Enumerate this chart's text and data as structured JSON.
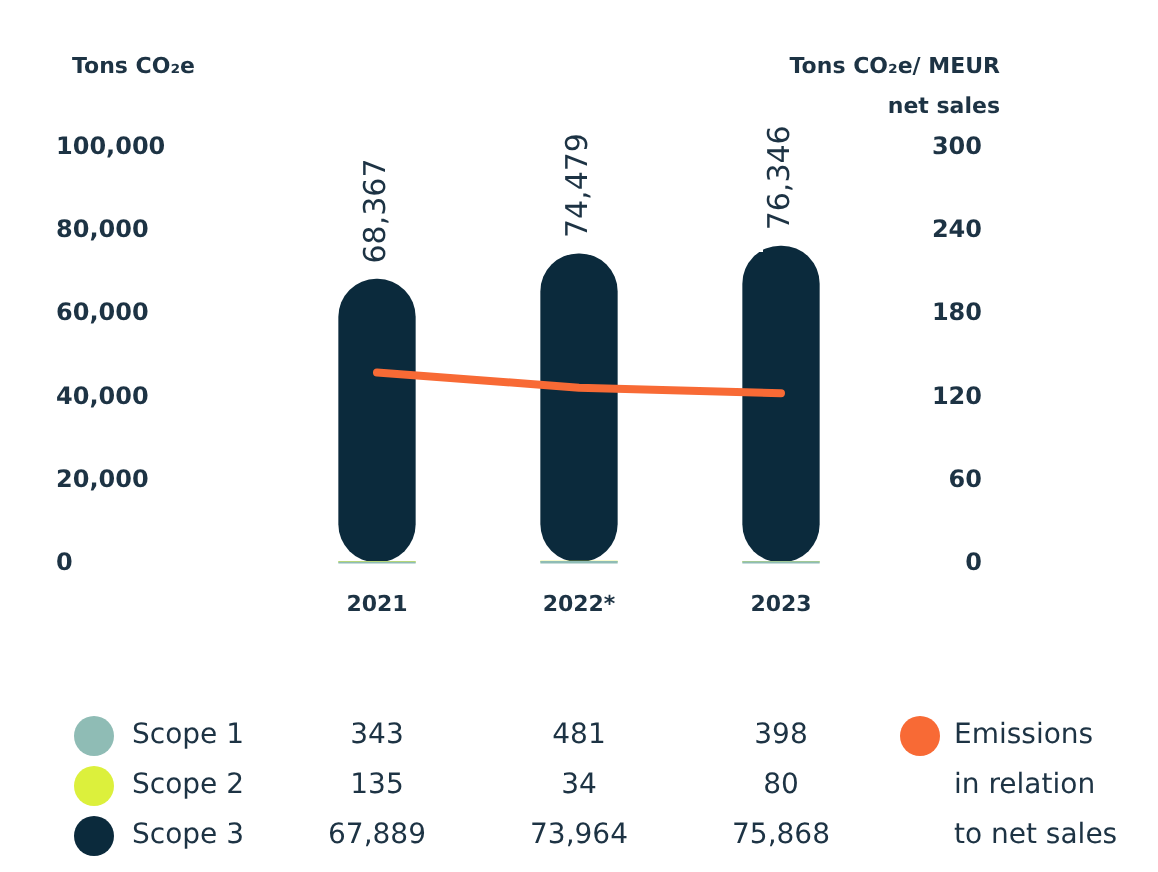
{
  "chart_data": {
    "type": "bar",
    "stacked": true,
    "ylabel": "Tons CO₂e",
    "y2label": "Tons CO₂e/ MEUR net sales",
    "categories": [
      "2021",
      "2022*",
      "2023"
    ],
    "series": [
      {
        "name": "Scope 1",
        "color": "#8fbcb5",
        "values": [
          343,
          481,
          398
        ],
        "value_labels": [
          "343",
          "481",
          "398"
        ]
      },
      {
        "name": "Scope 2",
        "color": "#dcf03c",
        "values": [
          135,
          34,
          80
        ],
        "value_labels": [
          "135",
          "34",
          "80"
        ]
      },
      {
        "name": "Scope 3",
        "color": "#0b2a3c",
        "values": [
          67889,
          73964,
          75868
        ],
        "value_labels": [
          "67,889",
          "73,964",
          "75,868"
        ]
      },
      {
        "name": "Emissions in relation to net sales",
        "type": "line",
        "axis": "y2",
        "color": "#f86a35",
        "values": [
          138,
          127,
          123
        ]
      }
    ],
    "totals": [
      "68,367",
      "74,479",
      "76,346"
    ],
    "ylim": [
      0,
      100000
    ],
    "yticks": [
      {
        "value": 0,
        "label": "0"
      },
      {
        "value": 20000,
        "label": "20,000"
      },
      {
        "value": 40000,
        "label": "40,000"
      },
      {
        "value": 60000,
        "label": "60,000"
      },
      {
        "value": 80000,
        "label": "80,000"
      },
      {
        "value": 100000,
        "label": "100,000"
      }
    ],
    "y2lim": [
      0,
      300
    ],
    "y2ticks": [
      0,
      60,
      120,
      180,
      240,
      300
    ],
    "grid": false,
    "legend": "bottom",
    "marker": "none"
  }
}
